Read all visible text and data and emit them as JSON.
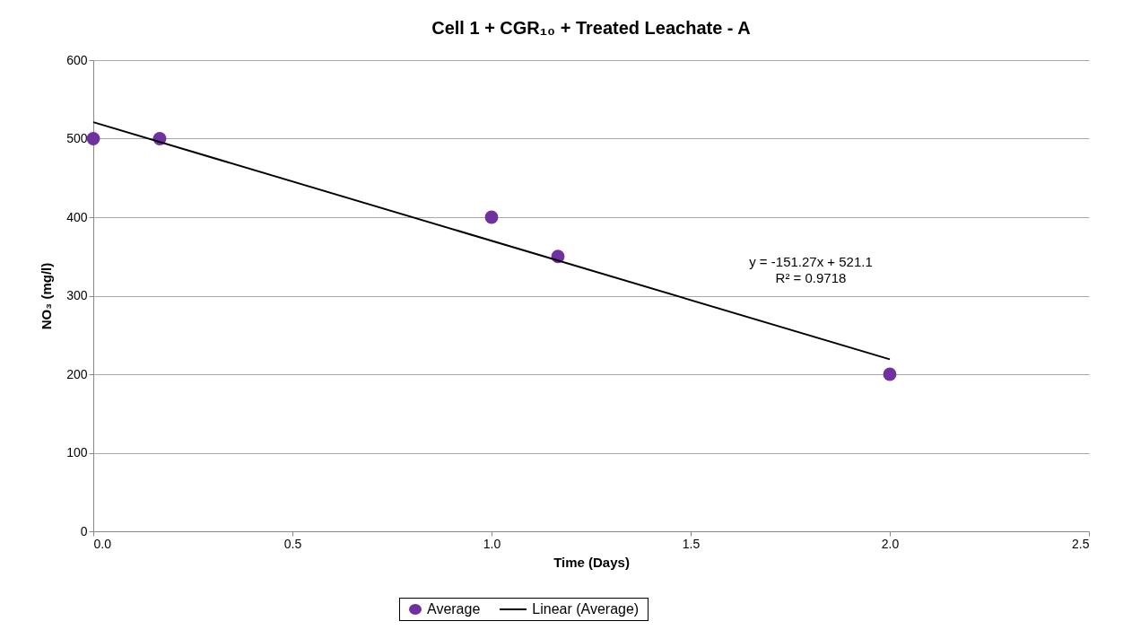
{
  "chart_data": {
    "type": "scatter",
    "title": "Cell 1 + CGR₁₀ + Treated Leachate - A",
    "xlabel": "Time (Days)",
    "ylabel": "NO₃ (mg/l)",
    "series": [
      {
        "name": "Average",
        "color": "#7030a0",
        "marker": "circle",
        "x": [
          0,
          0.1667,
          1,
          1.1667,
          2
        ],
        "values": [
          500,
          500,
          400,
          350,
          200
        ]
      },
      {
        "name": "Linear (Average)",
        "type": "line",
        "marker": "none",
        "color": "#000000",
        "x": [
          0,
          2
        ],
        "values": [
          521,
          219
        ]
      }
    ],
    "annotations": [
      "y = -151.27x + 521.1",
      "R² = 0.9718"
    ],
    "xlim": [
      0,
      2.5
    ],
    "xticks": [
      {
        "value": 0,
        "label": "0.0"
      },
      {
        "value": 0.5,
        "label": "0.5"
      },
      {
        "value": 1,
        "label": "1.0"
      },
      {
        "value": 1.5,
        "label": "1.5"
      },
      {
        "value": 2,
        "label": "2.0"
      },
      {
        "value": 2.5,
        "label": "2.5"
      }
    ],
    "ylim": [
      0,
      600
    ],
    "yticks": [
      0,
      100,
      200,
      300,
      400,
      500,
      600
    ],
    "grid": "y",
    "legend": "bottom",
    "line_style": "solid"
  }
}
